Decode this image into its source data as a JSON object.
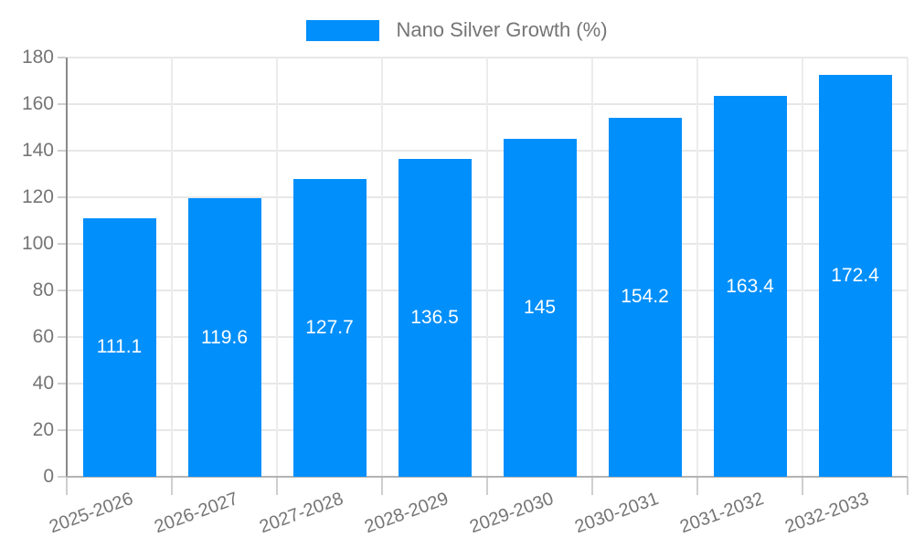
{
  "chart_data": {
    "type": "bar",
    "title": "",
    "legend": "Nano Silver Growth (%)",
    "legend_position": "top",
    "categories": [
      "2025-2026",
      "2026-2027",
      "2027-2028",
      "2028-2029",
      "2029-2030",
      "2030-2031",
      "2031-2032",
      "2032-2033"
    ],
    "values": [
      111.1,
      119.6,
      127.7,
      136.5,
      145,
      154.2,
      163.4,
      172.4
    ],
    "xlabel": "",
    "ylabel": "",
    "ylim": [
      0,
      180
    ],
    "yticks": [
      0,
      20,
      40,
      60,
      80,
      100,
      120,
      140,
      160,
      180
    ],
    "grid": true,
    "bar_color": "#008FFB",
    "value_label_color": "#ffffff",
    "axis_text_color": "#757575"
  }
}
